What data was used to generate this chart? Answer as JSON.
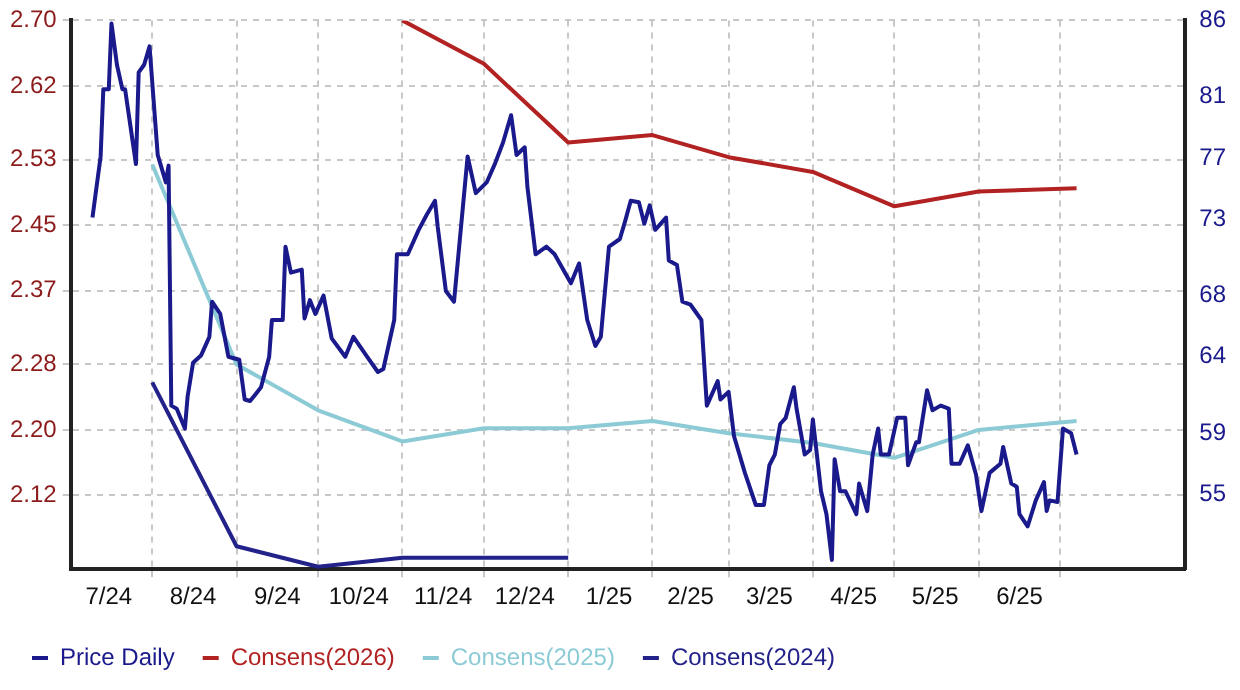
{
  "chart_data": {
    "type": "line",
    "legend": "bottom left",
    "grid": true,
    "xlim": [
      "2024-07-02",
      "2025-08-16"
    ],
    "xticks": [
      {
        "value": "2024-07-16",
        "label": "7/24"
      },
      {
        "value": "2024-08-01",
        "label": null
      },
      {
        "value": "2024-08-16",
        "label": "8/24"
      },
      {
        "value": "2024-09-01",
        "label": null
      },
      {
        "value": "2024-09-16",
        "label": "9/24"
      },
      {
        "value": "2024-10-01",
        "label": null
      },
      {
        "value": "2024-10-16",
        "label": "10/24"
      },
      {
        "value": "2024-11-01",
        "label": null
      },
      {
        "value": "2024-11-16",
        "label": "11/24"
      },
      {
        "value": "2024-12-01",
        "label": null
      },
      {
        "value": "2024-12-16",
        "label": "12/24"
      },
      {
        "value": "2025-01-01",
        "label": null
      },
      {
        "value": "2025-01-16",
        "label": "1/25"
      },
      {
        "value": "2025-02-01",
        "label": null
      },
      {
        "value": "2025-02-15",
        "label": "2/25"
      },
      {
        "value": "2025-03-01",
        "label": null
      },
      {
        "value": "2025-03-16",
        "label": "3/25"
      },
      {
        "value": "2025-04-01",
        "label": null
      },
      {
        "value": "2025-04-16",
        "label": "4/25"
      },
      {
        "value": "2025-05-01",
        "label": null
      },
      {
        "value": "2025-05-16",
        "label": "5/25"
      },
      {
        "value": "2025-06-01",
        "label": null
      },
      {
        "value": "2025-06-16",
        "label": "6/25"
      },
      {
        "value": "2025-07-01",
        "label": null
      }
    ],
    "ylim": [
      2.03,
      2.7
    ],
    "yticks": [
      {
        "value": 2.7,
        "label": "2.70"
      },
      2.62,
      2.53,
      2.45,
      2.37,
      2.28,
      {
        "value": 2.2,
        "label": "2.20"
      },
      2.12
    ],
    "y2lim": [
      50.1,
      86
    ],
    "y2ticks": [
      86,
      81,
      77,
      73,
      68,
      64,
      59,
      55
    ],
    "series": [
      {
        "name": "Price Daily",
        "color": "#1a1a8c",
        "axis": "y2",
        "x": [
          "2024-07-10",
          "2024-07-13",
          "2024-07-14",
          "2024-07-16",
          "2024-07-17",
          "2024-07-19",
          "2024-07-21",
          "2024-07-22",
          "2024-07-26",
          "2024-07-27",
          "2024-07-29",
          "2024-07-31",
          "2024-08-03",
          "2024-08-06",
          "2024-08-07",
          "2024-08-08",
          "2024-08-10",
          "2024-08-13",
          "2024-08-14",
          "2024-08-16",
          "2024-08-19",
          "2024-08-22",
          "2024-08-23",
          "2024-08-26",
          "2024-08-29",
          "2024-09-02",
          "2024-09-04",
          "2024-09-06",
          "2024-09-10",
          "2024-09-13",
          "2024-09-14",
          "2024-09-18",
          "2024-09-19",
          "2024-09-21",
          "2024-09-25",
          "2024-09-26",
          "2024-09-28",
          "2024-09-30",
          "2024-10-03",
          "2024-10-06",
          "2024-10-11",
          "2024-10-14",
          "2024-10-19",
          "2024-10-23",
          "2024-10-25",
          "2024-10-29",
          "2024-10-30",
          "2024-11-03",
          "2024-11-07",
          "2024-11-10",
          "2024-11-13",
          "2024-11-14",
          "2024-11-17",
          "2024-11-20",
          "2024-11-25",
          "2024-11-28",
          "2024-12-02",
          "2024-12-05",
          "2024-12-08",
          "2024-12-11",
          "2024-12-13",
          "2024-12-16",
          "2024-12-17",
          "2024-12-20",
          "2024-12-24",
          "2024-12-27",
          "2025-01-02",
          "2025-01-05",
          "2025-01-08",
          "2025-01-11",
          "2025-01-13",
          "2025-01-16",
          "2025-01-20",
          "2025-01-22",
          "2025-01-24",
          "2025-01-27",
          "2025-01-29",
          "2025-01-31",
          "2025-02-02",
          "2025-02-06",
          "2025-02-07",
          "2025-02-10",
          "2025-02-12",
          "2025-02-15",
          "2025-02-19",
          "2025-02-21",
          "2025-02-25",
          "2025-02-26",
          "2025-03-01",
          "2025-03-03",
          "2025-03-07",
          "2025-03-11",
          "2025-03-14",
          "2025-03-16",
          "2025-03-18",
          "2025-03-20",
          "2025-03-22",
          "2025-03-25",
          "2025-03-26",
          "2025-03-29",
          "2025-03-31",
          "2025-04-01",
          "2025-04-04",
          "2025-04-06",
          "2025-04-08",
          "2025-04-09",
          "2025-04-11",
          "2025-04-13",
          "2025-04-17",
          "2025-04-18",
          "2025-04-21",
          "2025-04-23",
          "2025-04-25",
          "2025-04-26",
          "2025-04-29",
          "2025-05-02",
          "2025-05-05",
          "2025-05-06",
          "2025-05-09",
          "2025-05-10",
          "2025-05-13",
          "2025-05-15",
          "2025-05-18",
          "2025-05-21",
          "2025-05-22",
          "2025-05-25",
          "2025-05-28",
          "2025-05-31",
          "2025-06-02",
          "2025-06-05",
          "2025-06-09",
          "2025-06-10",
          "2025-06-13",
          "2025-06-15",
          "2025-06-16",
          "2025-06-19",
          "2025-06-22",
          "2025-06-25",
          "2025-06-26",
          "2025-06-27",
          "2025-06-30",
          "2025-07-02",
          "2025-07-05",
          "2025-07-07"
        ],
        "values": [
          73.1,
          77.1,
          81.5,
          81.5,
          85.8,
          83.1,
          81.5,
          81.5,
          76.6,
          82.6,
          83.1,
          84.3,
          77.2,
          75.4,
          76.5,
          60.8,
          60.6,
          59.3,
          61.4,
          63.6,
          64.1,
          65.3,
          67.6,
          66.8,
          64.0,
          63.8,
          61.2,
          61.1,
          62.0,
          64.0,
          66.4,
          66.4,
          71.2,
          69.5,
          69.7,
          66.5,
          67.7,
          66.8,
          68.0,
          65.2,
          64.0,
          65.3,
          64.0,
          63.0,
          63.2,
          66.4,
          70.7,
          70.7,
          72.3,
          73.3,
          74.2,
          72.5,
          68.3,
          67.6,
          77.1,
          74.7,
          75.4,
          76.6,
          78.0,
          79.8,
          77.2,
          77.7,
          75.1,
          70.7,
          71.2,
          70.7,
          68.8,
          70.1,
          66.4,
          64.7,
          65.3,
          71.2,
          71.7,
          72.9,
          74.2,
          74.1,
          72.7,
          73.9,
          72.3,
          73.1,
          70.3,
          70.0,
          67.6,
          67.4,
          66.4,
          60.8,
          62.4,
          61.2,
          61.7,
          58.8,
          56.4,
          54.3,
          54.3,
          56.9,
          57.6,
          59.6,
          60.0,
          62.0,
          60.6,
          57.6,
          57.9,
          59.9,
          55.2,
          53.7,
          50.7,
          57.3,
          55.2,
          55.2,
          53.7,
          55.7,
          53.9,
          57.6,
          59.3,
          57.6,
          57.6,
          60.0,
          60.0,
          56.9,
          58.4,
          58.4,
          61.8,
          60.5,
          60.8,
          60.6,
          57.0,
          57.0,
          58.2,
          56.3,
          53.9,
          56.4,
          57.0,
          58.1,
          55.7,
          55.5,
          53.7,
          52.9,
          54.6,
          55.8,
          53.9,
          54.6,
          54.5,
          59.3,
          59.0,
          57.6
        ]
      },
      {
        "name": "Consens(2026)",
        "color": "#b22222",
        "x": [
          "2024-11-01",
          "2024-12-01",
          "2025-01-01",
          "2025-02-01",
          "2025-03-01",
          "2025-04-01",
          "2025-05-01",
          "2025-06-01",
          "2025-07-07"
        ],
        "values": [
          2.7,
          2.647,
          2.551,
          2.56,
          2.533,
          2.515,
          2.473,
          2.491,
          2.495
        ]
      },
      {
        "name": "Consens(2025)",
        "color": "#8ccbd6",
        "x": [
          "2024-08-01",
          "2024-09-01",
          "2024-10-01",
          "2024-11-01",
          "2024-12-01",
          "2025-01-01",
          "2025-02-01",
          "2025-03-01",
          "2025-04-01",
          "2025-05-01",
          "2025-06-01",
          "2025-07-07"
        ],
        "values": [
          2.524,
          2.28,
          2.224,
          2.186,
          2.202,
          2.202,
          2.211,
          2.196,
          2.184,
          2.166,
          2.2,
          2.211
        ]
      },
      {
        "name": "Consens(2024)",
        "color": "#22228a",
        "x": [
          "2024-08-01",
          "2024-09-01",
          "2024-10-01",
          "2024-11-01",
          "2024-12-01",
          "2025-01-01"
        ],
        "values": [
          2.258,
          2.058,
          2.033,
          2.044,
          2.044,
          2.044
        ]
      }
    ]
  }
}
